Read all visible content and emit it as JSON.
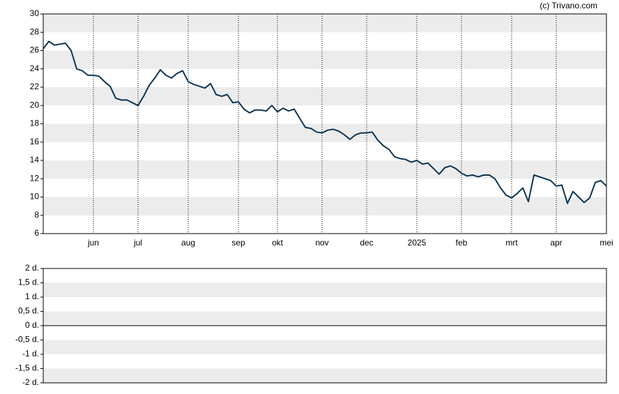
{
  "source": "(c) Trivano.com",
  "chart_data": [
    {
      "type": "line",
      "categories": [
        null,
        null,
        null,
        null,
        null,
        null,
        null,
        null,
        null,
        "jun",
        null,
        null,
        null,
        null,
        null,
        null,
        null,
        "jul",
        null,
        null,
        null,
        null,
        null,
        null,
        null,
        null,
        "aug",
        null,
        null,
        null,
        null,
        null,
        null,
        null,
        null,
        "sep",
        null,
        null,
        null,
        null,
        null,
        null,
        "okt",
        null,
        null,
        null,
        null,
        null,
        null,
        null,
        "nov",
        null,
        null,
        null,
        null,
        null,
        null,
        null,
        "dec",
        null,
        null,
        null,
        null,
        null,
        null,
        null,
        null,
        "2025",
        null,
        null,
        null,
        null,
        null,
        null,
        null,
        "feb",
        null,
        null,
        null,
        null,
        null,
        null,
        null,
        null,
        "mrt",
        null,
        null,
        null,
        null,
        null,
        null,
        null,
        "apr",
        null,
        null,
        null,
        null,
        null,
        null,
        null,
        null,
        "mei"
      ],
      "series": [
        {
          "color": "#0d3551",
          "values": [
            26.2,
            27.0,
            26.6,
            26.7,
            26.8,
            26.0,
            24.0,
            23.8,
            23.3,
            23.3,
            23.2,
            22.6,
            22.1,
            20.8,
            20.6,
            20.6,
            20.3,
            20.0,
            21.0,
            22.2,
            23.0,
            23.9,
            23.3,
            23.0,
            23.5,
            23.8,
            22.6,
            22.3,
            22.1,
            21.9,
            22.4,
            21.2,
            21.0,
            21.2,
            20.3,
            20.4,
            19.6,
            19.2,
            19.5,
            19.5,
            19.4,
            20.0,
            19.3,
            19.7,
            19.4,
            19.6,
            18.6,
            17.6,
            17.5,
            17.1,
            17.0,
            17.3,
            17.4,
            17.2,
            16.8,
            16.3,
            16.8,
            17.0,
            17.0,
            17.1,
            16.2,
            15.6,
            15.2,
            14.4,
            14.2,
            14.1,
            13.8,
            14.0,
            13.6,
            13.7,
            13.1,
            12.5,
            13.2,
            13.4,
            13.1,
            12.6,
            12.3,
            12.4,
            12.2,
            12.4,
            12.4,
            12.0,
            11.0,
            10.2,
            9.9,
            10.4,
            11.0,
            9.5,
            12.4,
            12.2,
            12.0,
            11.8,
            11.2,
            11.3,
            9.3,
            10.6,
            10.0,
            9.4,
            9.9,
            11.6,
            11.8,
            11.2
          ]
        }
      ],
      "ylim": [
        6,
        30
      ],
      "yticks": [
        6,
        8,
        10,
        12,
        14,
        16,
        18,
        20,
        22,
        24,
        26,
        28,
        30
      ],
      "grid": true
    },
    {
      "type": "bar",
      "ylim": [
        -2,
        2
      ],
      "yticks": [
        {
          "value": -2,
          "label": "-2 d."
        },
        {
          "value": -1.5,
          "label": "-1,5 d."
        },
        {
          "value": -1,
          "label": "-1 d."
        },
        {
          "value": -0.5,
          "label": "-0,5 d."
        },
        {
          "value": 0,
          "label": "0 d."
        },
        {
          "value": 0.5,
          "label": "0,5 d."
        },
        {
          "value": 1,
          "label": "1 d."
        },
        {
          "value": 1.5,
          "label": "1,5 d."
        },
        {
          "value": 2,
          "label": "2 d."
        }
      ],
      "grid": true
    }
  ]
}
